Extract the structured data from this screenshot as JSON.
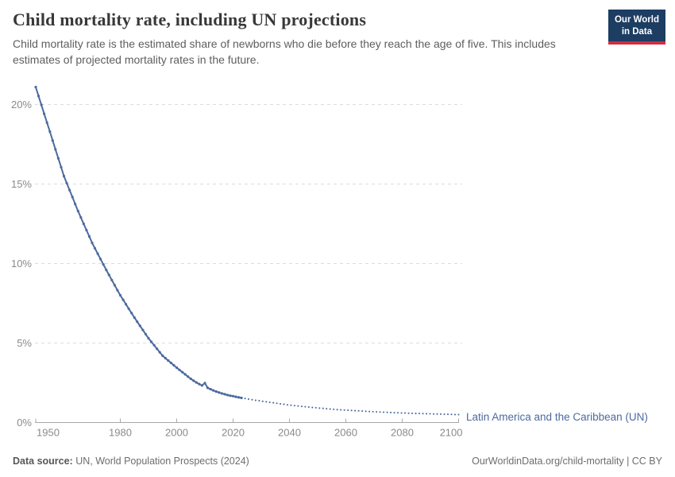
{
  "header": {
    "title": "Child mortality rate, including UN projections",
    "subtitle": "Child mortality rate is the estimated share of newborns who die before they reach the age of five. This includes estimates of projected mortality rates in the future.",
    "logo": {
      "line1": "Our World",
      "line2": "in Data",
      "bg_color": "#1d3d63",
      "accent_color": "#cf2e41"
    }
  },
  "footer": {
    "source_label": "Data source:",
    "source_text": " UN, World Population Prospects (2024)",
    "credit": "OurWorldinData.org/child-mortality | CC BY"
  },
  "chart_data": {
    "type": "line",
    "title": "Child mortality rate, including UN projections",
    "xlabel": "",
    "ylabel": "",
    "xlim": [
      1950,
      2100
    ],
    "ylim": [
      0,
      21.5
    ],
    "grid": "horizontal-dashed",
    "x_ticks": [
      1950,
      1980,
      2000,
      2020,
      2040,
      2060,
      2080,
      2100
    ],
    "y_ticks": [
      {
        "value": 0,
        "label": "0%"
      },
      {
        "value": 5,
        "label": "5%"
      },
      {
        "value": 10,
        "label": "10%"
      },
      {
        "value": 15,
        "label": "15%"
      },
      {
        "value": 20,
        "label": "20%"
      }
    ],
    "legend_position": "end-of-line",
    "axis_color": "#a9a9a9",
    "grid_color": "#dcdcdc",
    "tick_label_color": "#8a8a8a",
    "series": [
      {
        "name": "Latin America and the Caribbean (UN)",
        "color": "#4c6a9e",
        "segments": [
          {
            "style": "solid-with-markers",
            "start_year": 1950,
            "end_year": 2023,
            "values": [
              21.1,
              20.54,
              19.98,
              19.42,
              18.86,
              18.3,
              17.74,
              17.18,
              16.62,
              16.06,
              15.5,
              15.06,
              14.62,
              14.18,
              13.74,
              13.3,
              12.9,
              12.5,
              12.1,
              11.7,
              11.3,
              10.96,
              10.62,
              10.28,
              9.94,
              9.6,
              9.28,
              8.96,
              8.64,
              8.32,
              8.0,
              7.72,
              7.44,
              7.16,
              6.88,
              6.6,
              6.34,
              6.08,
              5.82,
              5.56,
              5.3,
              5.08,
              4.86,
              4.64,
              4.42,
              4.2,
              4.05,
              3.9,
              3.75,
              3.6,
              3.45,
              3.31,
              3.17,
              3.03,
              2.89,
              2.75,
              2.63,
              2.52,
              2.42,
              2.33,
              2.48,
              2.18,
              2.1,
              2.02,
              1.95,
              1.89,
              1.83,
              1.78,
              1.73,
              1.69,
              1.66,
              1.62,
              1.58,
              1.55
            ]
          },
          {
            "style": "dotted-projection",
            "start_year": 2023,
            "end_year": 2100,
            "values": [
              1.55,
              1.52,
              1.49,
              1.46,
              1.43,
              1.4,
              1.38,
              1.35,
              1.32,
              1.3,
              1.27,
              1.25,
              1.22,
              1.2,
              1.17,
              1.15,
              1.12,
              1.1,
              1.08,
              1.06,
              1.04,
              1.02,
              1.0,
              0.99,
              0.97,
              0.95,
              0.94,
              0.92,
              0.9,
              0.89,
              0.87,
              0.86,
              0.84,
              0.83,
              0.81,
              0.8,
              0.79,
              0.78,
              0.77,
              0.76,
              0.75,
              0.74,
              0.73,
              0.72,
              0.71,
              0.7,
              0.69,
              0.68,
              0.67,
              0.66,
              0.65,
              0.65,
              0.64,
              0.63,
              0.62,
              0.62,
              0.61,
              0.6,
              0.6,
              0.59,
              0.58,
              0.58,
              0.57,
              0.57,
              0.56,
              0.56,
              0.55,
              0.55,
              0.54,
              0.54,
              0.53,
              0.53,
              0.52,
              0.52,
              0.51,
              0.51,
              0.5,
              0.5
            ]
          }
        ]
      }
    ]
  }
}
